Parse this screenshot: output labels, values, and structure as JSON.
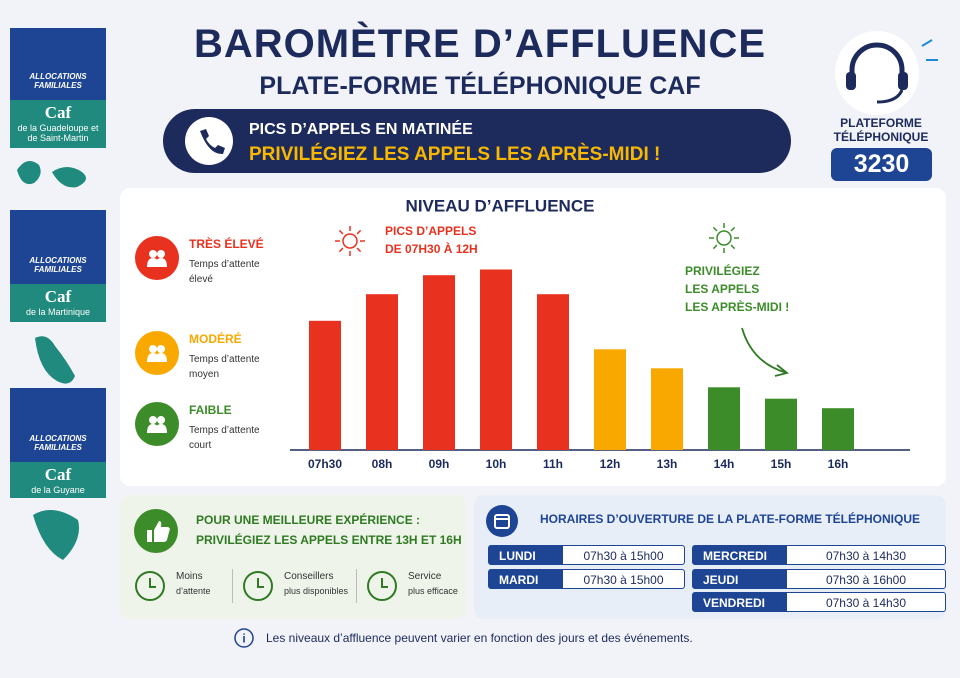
{
  "header": {
    "title": "BAROMÈTRE D’AFFLUENCE",
    "subtitle": "PLATE-FORME TÉLÉPHONIQUE CAF",
    "banner_line1": "PICS D’APPELS EN MATINÉE",
    "banner_line2": "PRIVILÉGIEZ LES APPELS LES APRÈS-MIDI !"
  },
  "phone": {
    "label": "PLATEFORME TÉLÉPHONIQUE",
    "number": "3230"
  },
  "sidebar": [
    {
      "brand": "ALLOCATIONS FAMILIALES",
      "caf": "Caf",
      "region": "de la Guadeloupe et de Saint-Martin"
    },
    {
      "brand": "ALLOCATIONS FAMILIALES",
      "caf": "Caf",
      "region": "de la Martinique"
    },
    {
      "brand": "ALLOCATIONS FAMILIALES",
      "caf": "Caf",
      "region": "de la Guyane"
    }
  ],
  "chart_data": {
    "type": "bar",
    "title": "NIVEAU D’AFFLUENCE",
    "categories": [
      "07h30",
      "08h",
      "09h",
      "10h",
      "11h",
      "12h",
      "13h",
      "14h",
      "15h",
      "16h"
    ],
    "values": [
      68,
      82,
      92,
      95,
      82,
      53,
      43,
      33,
      27,
      22
    ],
    "colors": [
      "#e8321f",
      "#e8321f",
      "#e8321f",
      "#e8321f",
      "#e8321f",
      "#f9a800",
      "#f9a800",
      "#3d8c2a",
      "#3d8c2a",
      "#3d8c2a"
    ],
    "ylim": [
      0,
      100
    ],
    "levels": [
      {
        "name": "TRÈS ÉLEVÉ",
        "description": "Temps d’attente élevé",
        "color": "#e8321f"
      },
      {
        "name": "MODÉRÉ",
        "description": "Temps d’attente moyen",
        "color": "#f9a800"
      },
      {
        "name": "FAIBLE",
        "description": "Temps d’attente court",
        "color": "#3d8c2a"
      }
    ],
    "annotations": [
      {
        "lines": [
          "PICS D’APPELS",
          "DE 07H30 À 12H"
        ],
        "color": "#e8321f"
      },
      {
        "lines": [
          "PRIVILÉGIEZ",
          "LES APPELS",
          "LES APRÈS-MIDI !"
        ],
        "color": "#3d8c2a"
      }
    ]
  },
  "tip": {
    "line1": "POUR UNE MEILLEURE EXPÉRIENCE :",
    "line2": "PRIVILÉGIEZ LES APPELS ENTRE 13H ET 16H",
    "benefits": [
      [
        "Moins",
        "d’attente"
      ],
      [
        "Conseillers",
        "plus disponibles"
      ],
      [
        "Service",
        "plus efficace"
      ]
    ]
  },
  "hours": {
    "title": "HORAIRES D’OUVERTURE DE LA PLATE-FORME TÉLÉPHONIQUE",
    "rows": [
      [
        "LUNDI",
        "07h30 à 15h00"
      ],
      [
        "MARDI",
        "07h30 à 15h00"
      ],
      [
        "MERCREDI",
        "07h30 à 14h30"
      ],
      [
        "JEUDI",
        "07h30 à 16h00"
      ],
      [
        "VENDREDI",
        "07h30 à 14h30"
      ]
    ]
  },
  "footer": "Les niveaux d’affluence peuvent varier en fonction des jours et des événements."
}
